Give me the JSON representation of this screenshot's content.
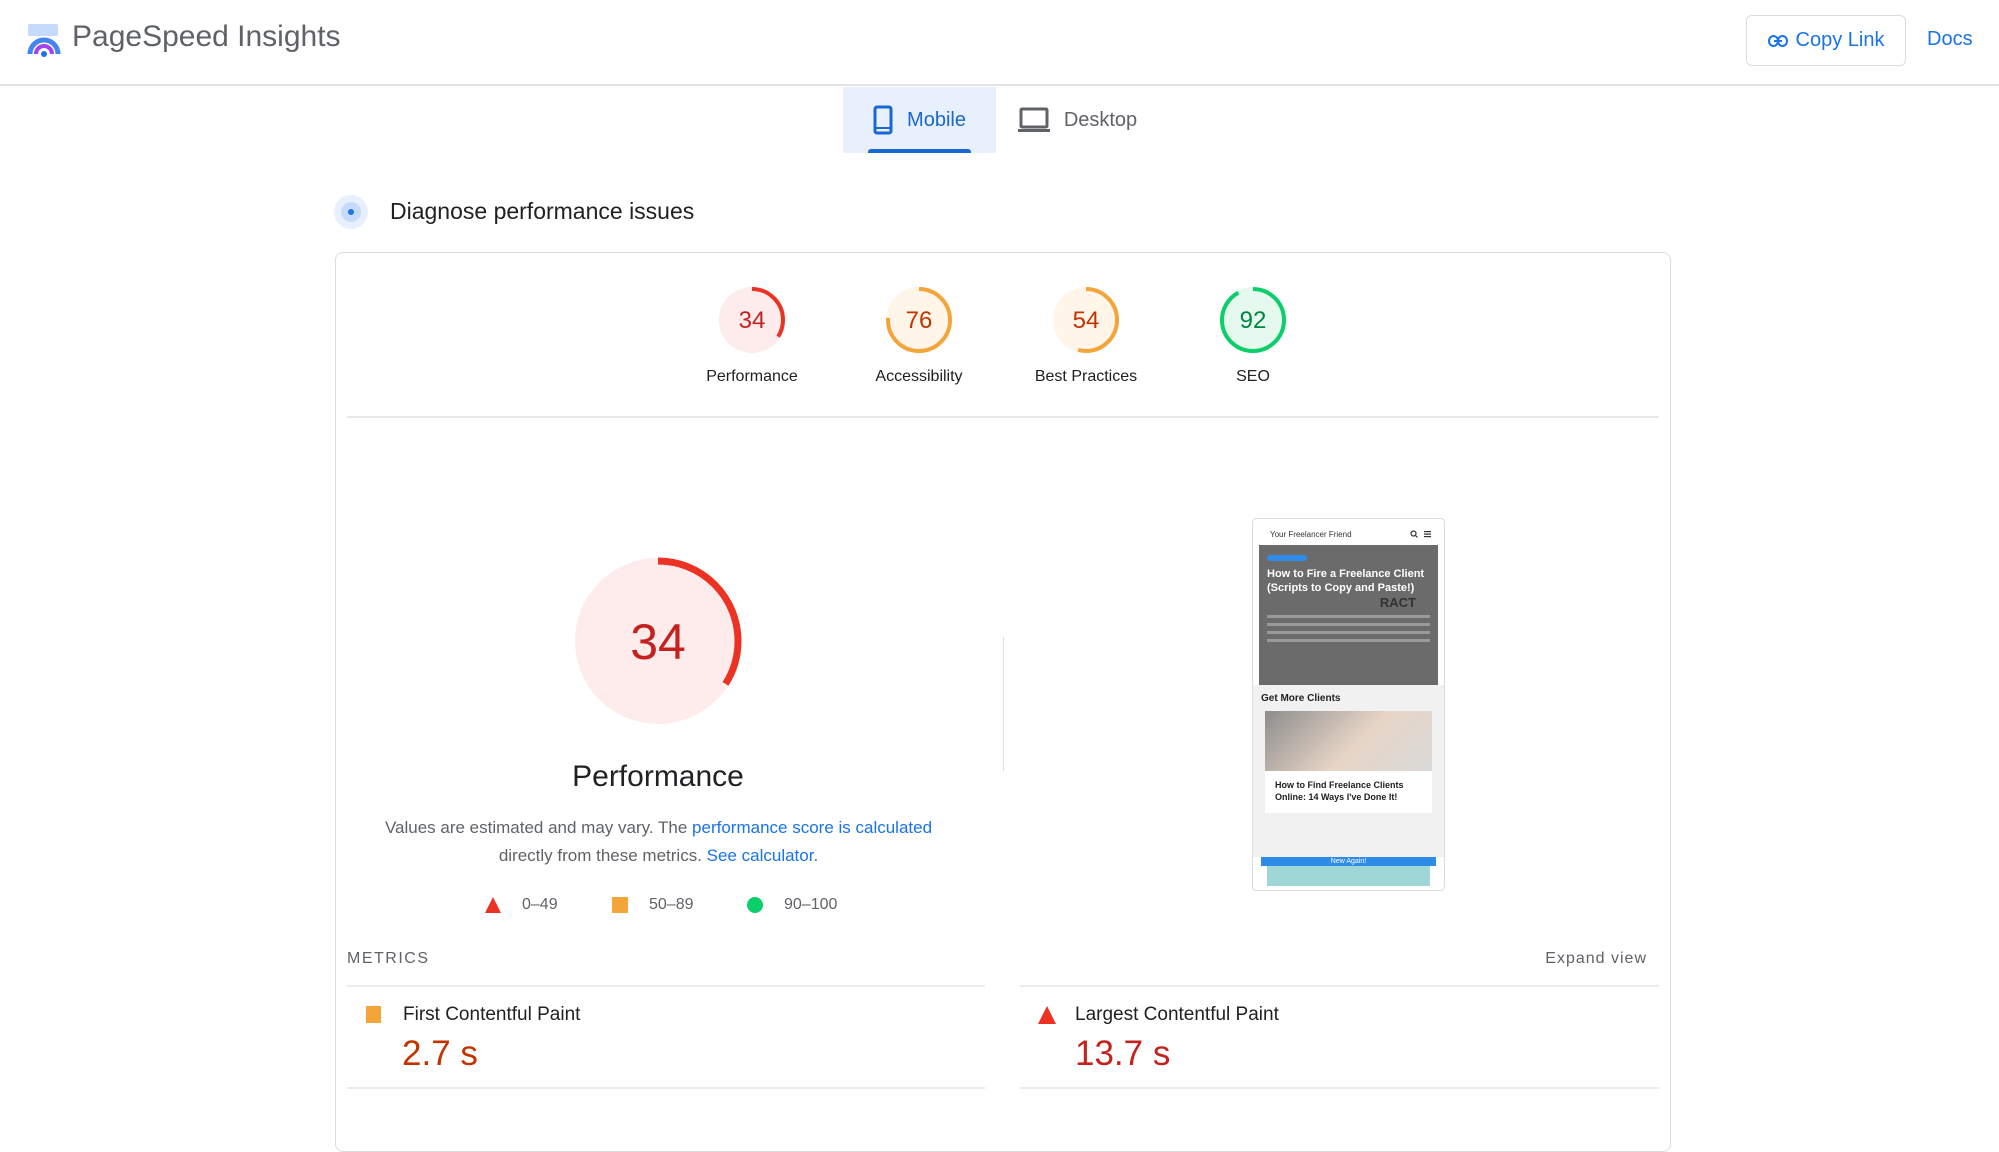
{
  "header": {
    "title": "PageSpeed Insights",
    "copy_link": "Copy Link",
    "docs": "Docs"
  },
  "tabs": [
    {
      "label": "Mobile",
      "selected": true
    },
    {
      "label": "Desktop",
      "selected": false
    }
  ],
  "section_title": "Diagnose performance issues",
  "scores": [
    {
      "label": "Performance",
      "value": 34,
      "color": "#eb3223",
      "text_color": "#c5221f",
      "bg": "#fdeceb"
    },
    {
      "label": "Accessibility",
      "value": 76,
      "color": "#f4a53a",
      "text_color": "#c33300",
      "bg": "#fff5e8"
    },
    {
      "label": "Best Practices",
      "value": 54,
      "color": "#f4a53a",
      "text_color": "#c33300",
      "bg": "#fff5e8"
    },
    {
      "label": "SEO",
      "value": 92,
      "color": "#0cce6b",
      "text_color": "#018642",
      "bg": "#e6f9ef"
    }
  ],
  "main_gauge": {
    "label": "Performance",
    "value": 34
  },
  "description": {
    "pre": "Values are estimated and may vary. The ",
    "link1": "performance score is calculated",
    "mid": " directly from these metrics. ",
    "link2": "See calculator."
  },
  "legend": [
    {
      "range": "0–49",
      "color": "#eb3223",
      "shape": "triangle"
    },
    {
      "range": "50–89",
      "color": "#f4a53a",
      "shape": "square"
    },
    {
      "range": "90–100",
      "color": "#0cce6b",
      "shape": "circle"
    }
  ],
  "thumbnail": {
    "site": "Your Freelancer Friend",
    "hero_title": "How to Fire a Freelance Client (Scripts to Copy and Paste!)",
    "hero_watermark": "RACT",
    "section": "Get More Clients",
    "post_title": "How to Find Freelance Clients Online: 14 Ways I've Done It!",
    "banner": "New Again!"
  },
  "metrics": {
    "heading": "METRICS",
    "expand": "Expand view",
    "items": [
      {
        "label": "First Contentful Paint",
        "value": "2.7 s",
        "status": "average",
        "color": "#f4a53a",
        "value_color": "#c33300"
      },
      {
        "label": "Largest Contentful Paint",
        "value": "13.7 s",
        "status": "fail",
        "color": "#eb3223",
        "value_color": "#c5221f"
      }
    ]
  }
}
